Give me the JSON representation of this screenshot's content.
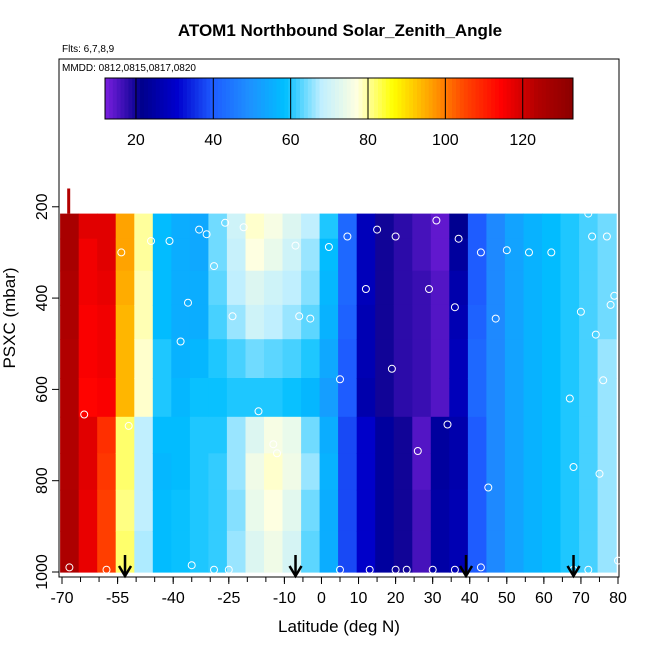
{
  "chart_data": {
    "type": "heatmap",
    "title": "ATOM1 Northbound Solar_Zenith_Angle",
    "subtitle_flights": "Flts: 6,7,8,9",
    "subtitle_dates": "MMDD: 0812,0815,0817,0820",
    "xlabel": "Latitude (deg N)",
    "ylabel": "PSXC (mbar)",
    "xlim": [
      -70,
      80
    ],
    "ylim": [
      1000,
      80
    ],
    "x_ticks": [
      "-70",
      "-55",
      "-40",
      "-25",
      "-10",
      "0",
      "10",
      "20",
      "30",
      "40",
      "50",
      "60",
      "70",
      "80"
    ],
    "x_tick_values": [
      -70,
      -55,
      -40,
      -25,
      -10,
      0,
      10,
      20,
      30,
      40,
      50,
      60,
      70,
      80
    ],
    "y_ticks": [
      "200",
      "400",
      "600",
      "800",
      "1000"
    ],
    "y_tick_values": [
      200,
      400,
      600,
      800,
      1000
    ],
    "colorbar": {
      "range": [
        12,
        133
      ],
      "ticks": [
        "20",
        "40",
        "60",
        "80",
        "100",
        "120"
      ],
      "tick_values": [
        20,
        40,
        60,
        80,
        100,
        120
      ],
      "colors": [
        "#7b1fe0",
        "#00008b",
        "#0000cd",
        "#1e5cff",
        "#1e90ff",
        "#00bfff",
        "#bfefff",
        "#ffffe0",
        "#ffff00",
        "#ffa500",
        "#ff4500",
        "#ff0000",
        "#b20000",
        "#8b0000"
      ]
    },
    "series": [
      {
        "x": -68,
        "values": [
          126,
          126,
          125,
          125,
          124,
          124,
          124,
          124,
          125,
          125
        ]
      },
      {
        "x": -63,
        "values": [
          118,
          116,
          116,
          115,
          115,
          114,
          118,
          118,
          117,
          117
        ]
      },
      {
        "x": -58,
        "values": [
          118,
          118,
          117,
          116,
          116,
          115,
          108,
          107,
          106,
          106
        ]
      },
      {
        "x": -53,
        "values": [
          96,
          96,
          95,
          94,
          94,
          94,
          82,
          82,
          81,
          82
        ]
      },
      {
        "x": -48,
        "values": [
          80,
          80,
          79,
          79,
          78,
          78,
          68,
          68,
          68,
          67
        ]
      },
      {
        "x": -43,
        "values": [
          58,
          58,
          58,
          58,
          60,
          60,
          58,
          57,
          58,
          58
        ]
      },
      {
        "x": -38,
        "values": [
          55,
          55,
          55,
          55,
          56,
          57,
          58,
          58,
          59,
          59
        ]
      },
      {
        "x": -33,
        "values": [
          54,
          54,
          55,
          55,
          57,
          59,
          60,
          60,
          60,
          60
        ]
      },
      {
        "x": -28,
        "values": [
          64,
          64,
          63,
          62,
          60,
          59,
          60,
          61,
          61,
          61
        ]
      },
      {
        "x": -23,
        "values": [
          70,
          69,
          68,
          66,
          62,
          60,
          66,
          66,
          65,
          66
        ]
      },
      {
        "x": -18,
        "values": [
          78,
          77,
          72,
          70,
          64,
          60,
          72,
          75,
          74,
          72
        ]
      },
      {
        "x": -13,
        "values": [
          76,
          74,
          70,
          68,
          63,
          60,
          76,
          78,
          77,
          75
        ]
      },
      {
        "x": -8,
        "values": [
          72,
          70,
          68,
          66,
          62,
          59,
          74,
          75,
          73,
          71
        ]
      },
      {
        "x": -3,
        "values": [
          68,
          66,
          65,
          63,
          60,
          57,
          64,
          66,
          64,
          63
        ]
      },
      {
        "x": 2,
        "values": [
          60,
          58,
          57,
          56,
          54,
          52,
          55,
          56,
          55,
          55
        ]
      },
      {
        "x": 7,
        "values": [
          42,
          42,
          42,
          41,
          40,
          40,
          38,
          38,
          38,
          38
        ]
      },
      {
        "x": 12,
        "values": [
          28,
          28,
          28,
          27,
          27,
          26,
          30,
          30,
          30,
          30
        ]
      },
      {
        "x": 17,
        "values": [
          20,
          20,
          20,
          20,
          20,
          20,
          24,
          24,
          24,
          24
        ]
      },
      {
        "x": 22,
        "values": [
          18,
          18,
          18,
          18,
          18,
          18,
          20,
          20,
          20,
          20
        ]
      },
      {
        "x": 27,
        "values": [
          16,
          16,
          17,
          17,
          17,
          17,
          15,
          15,
          16,
          16
        ]
      },
      {
        "x": 32,
        "values": [
          14,
          14,
          15,
          15,
          15,
          15,
          24,
          24,
          25,
          25
        ]
      },
      {
        "x": 37,
        "values": [
          22,
          24,
          26,
          27,
          28,
          28,
          26,
          26,
          27,
          27
        ]
      },
      {
        "x": 42,
        "values": [
          40,
          40,
          40,
          41,
          42,
          42,
          40,
          40,
          40,
          40
        ]
      },
      {
        "x": 47,
        "values": [
          48,
          48,
          48,
          48,
          48,
          48,
          48,
          48,
          48,
          48
        ]
      },
      {
        "x": 52,
        "values": [
          53,
          53,
          53,
          53,
          53,
          53,
          53,
          53,
          53,
          53
        ]
      },
      {
        "x": 57,
        "values": [
          56,
          56,
          56,
          56,
          56,
          56,
          56,
          56,
          56,
          56
        ]
      },
      {
        "x": 62,
        "values": [
          58,
          58,
          58,
          58,
          58,
          58,
          58,
          58,
          58,
          58
        ]
      },
      {
        "x": 67,
        "values": [
          60,
          60,
          60,
          60,
          60,
          60,
          60,
          60,
          60,
          60
        ]
      },
      {
        "x": 72,
        "values": [
          62,
          62,
          62,
          62,
          62,
          62,
          62,
          62,
          62,
          62
        ]
      },
      {
        "x": 77,
        "values": [
          64,
          64,
          64,
          64,
          66,
          66,
          66,
          66,
          66,
          66
        ]
      }
    ],
    "pressure_levels": [
      240,
      300,
      380,
      450,
      530,
      620,
      700,
      780,
      860,
      960
    ],
    "observation_points": [
      {
        "lat": -58,
        "p": 995
      },
      {
        "lat": -68,
        "p": 990
      },
      {
        "lat": -54,
        "p": 300
      },
      {
        "lat": -52,
        "p": 680
      },
      {
        "lat": -46,
        "p": 275
      },
      {
        "lat": -41,
        "p": 275
      },
      {
        "lat": -38,
        "p": 495
      },
      {
        "lat": -36,
        "p": 410
      },
      {
        "lat": -33,
        "p": 250
      },
      {
        "lat": -31,
        "p": 260
      },
      {
        "lat": -29,
        "p": 330
      },
      {
        "lat": -26,
        "p": 235
      },
      {
        "lat": -24,
        "p": 440
      },
      {
        "lat": -21,
        "p": 245
      },
      {
        "lat": -17,
        "p": 648
      },
      {
        "lat": -13,
        "p": 720
      },
      {
        "lat": -12,
        "p": 740
      },
      {
        "lat": -7,
        "p": 285
      },
      {
        "lat": -6,
        "p": 440
      },
      {
        "lat": -3,
        "p": 445
      },
      {
        "lat": 2,
        "p": 288
      },
      {
        "lat": 5,
        "p": 578
      },
      {
        "lat": 7,
        "p": 265
      },
      {
        "lat": 12,
        "p": 380
      },
      {
        "lat": 15,
        "p": 250
      },
      {
        "lat": 19,
        "p": 555
      },
      {
        "lat": 20,
        "p": 265
      },
      {
        "lat": 26,
        "p": 735
      },
      {
        "lat": 29,
        "p": 380
      },
      {
        "lat": 31,
        "p": 230
      },
      {
        "lat": 34,
        "p": 677
      },
      {
        "lat": 36,
        "p": 420
      },
      {
        "lat": 37,
        "p": 270
      },
      {
        "lat": 43,
        "p": 300
      },
      {
        "lat": 45,
        "p": 815
      },
      {
        "lat": 47,
        "p": 445
      },
      {
        "lat": 50,
        "p": 295
      },
      {
        "lat": 56,
        "p": 300
      },
      {
        "lat": 62,
        "p": 300
      },
      {
        "lat": 67,
        "p": 620
      },
      {
        "lat": 68,
        "p": 770
      },
      {
        "lat": 70,
        "p": 430
      },
      {
        "lat": 72,
        "p": 215
      },
      {
        "lat": 73,
        "p": 265
      },
      {
        "lat": 74,
        "p": 480
      },
      {
        "lat": 75,
        "p": 785
      },
      {
        "lat": 76,
        "p": 580
      },
      {
        "lat": 77,
        "p": 265
      },
      {
        "lat": 78,
        "p": 415
      },
      {
        "lat": 79,
        "p": 395
      },
      {
        "lat": 80,
        "p": 975
      },
      {
        "lat": 72,
        "p": 995
      },
      {
        "lat": 68,
        "p": 995
      },
      {
        "lat": 43,
        "p": 990
      },
      {
        "lat": 36,
        "p": 995
      },
      {
        "lat": 30,
        "p": 995
      },
      {
        "lat": 23,
        "p": 995
      },
      {
        "lat": 20,
        "p": 995
      },
      {
        "lat": 13,
        "p": 995
      },
      {
        "lat": 5,
        "p": 995
      },
      {
        "lat": -29,
        "p": 995
      },
      {
        "lat": -35,
        "p": 985
      },
      {
        "lat": -25,
        "p": 995
      },
      {
        "lat": -64,
        "p": 655
      }
    ],
    "arrows_lat": [
      -53,
      -7,
      39,
      68
    ]
  }
}
